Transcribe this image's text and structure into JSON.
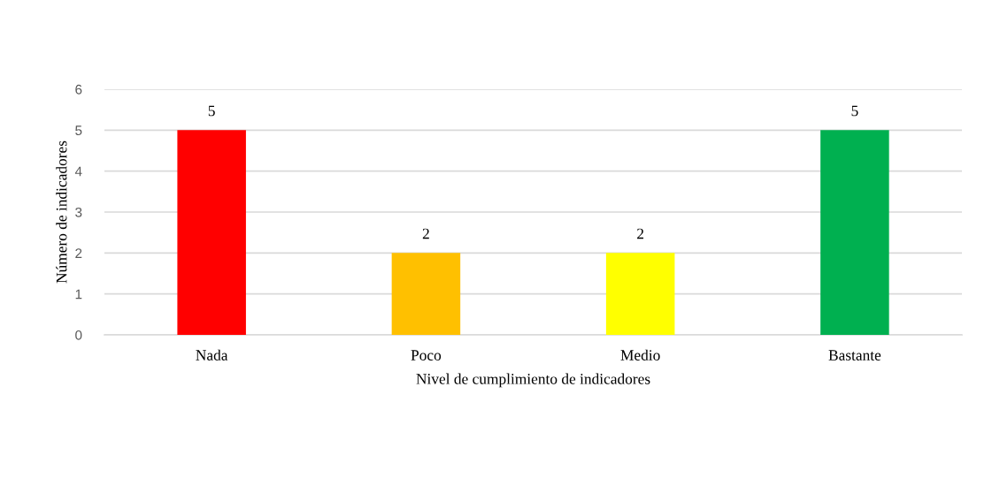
{
  "chart_data": {
    "type": "bar",
    "xlabel": "Nivel de cumplimiento de indicadores",
    "ylabel": "Número de indicadores",
    "categories": [
      "Nada",
      "Poco",
      "Medio",
      "Bastante"
    ],
    "values": [
      5,
      2,
      2,
      5
    ],
    "colors": [
      "#ff0000",
      "#ffc000",
      "#ffff00",
      "#00b050"
    ],
    "ylim": [
      0,
      6
    ],
    "yticks": [
      0,
      1,
      2,
      3,
      4,
      5,
      6
    ],
    "grid": "y",
    "data_labels": true,
    "legend": false
  }
}
